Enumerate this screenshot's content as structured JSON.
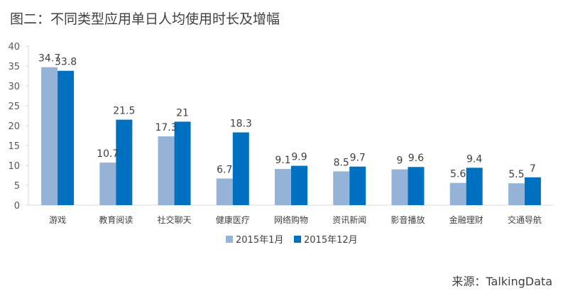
{
  "title": "图二：不同类型应用单日人均使用时长及增幅",
  "source": "来源：TalkingData",
  "chart_data": {
    "type": "bar",
    "title": "图二：不同类型应用单日人均使用时长及增幅",
    "xlabel": "",
    "ylabel": "",
    "ylim": [
      0,
      40
    ],
    "yticks": [
      0,
      5,
      10,
      15,
      20,
      25,
      30,
      35,
      40
    ],
    "grid": false,
    "legend_position": "bottom",
    "categories": [
      "游戏",
      "教育阅读",
      "社交聊天",
      "健康医疗",
      "网络购物",
      "资讯新闻",
      "影音播放",
      "金融理财",
      "交通导航"
    ],
    "series": [
      {
        "name": "2015年1月",
        "color": "#95b3d7",
        "values": [
          34.7,
          10.7,
          17.3,
          6.7,
          9.1,
          8.5,
          9,
          5.6,
          5.5
        ]
      },
      {
        "name": "2015年12月",
        "color": "#0070c0",
        "values": [
          33.8,
          21.5,
          21,
          18.3,
          9.9,
          9.7,
          9.6,
          9.4,
          7
        ]
      }
    ]
  }
}
